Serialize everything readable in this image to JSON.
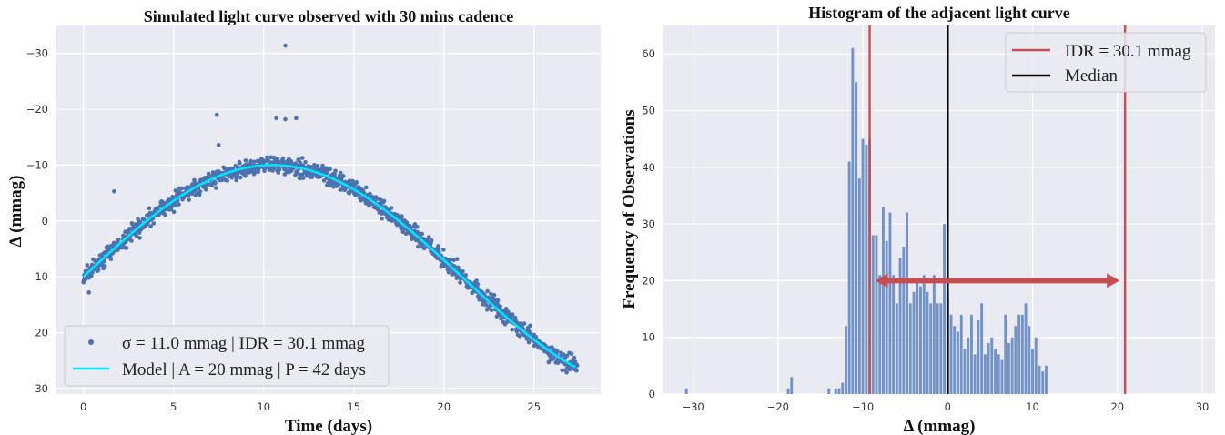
{
  "chart_data": [
    {
      "type": "scatter",
      "title": "Simulated light curve observed with 30 mins cadence",
      "xlabel": "Time (days)",
      "ylabel": "Δ (mmag)",
      "xlim": [
        -1.5,
        28.7
      ],
      "ylim": [
        31.0,
        -35.0
      ],
      "y_inverted": true,
      "xticks": [
        0,
        5,
        10,
        15,
        20,
        25
      ],
      "yticks": [
        -30,
        -20,
        -10,
        0,
        10,
        20,
        30
      ],
      "grid": true,
      "legend_position": "lower-left",
      "model": {
        "amplitude_mmag": 20,
        "period_days": 42,
        "peak_time_days": 10.5,
        "offset_mmag": 10
      },
      "outliers": [
        {
          "x": 1.7,
          "y": -5.3
        },
        {
          "x": 7.4,
          "y": -19.0
        },
        {
          "x": 7.5,
          "y": -13.6
        },
        {
          "x": 10.7,
          "y": -18.4
        },
        {
          "x": 11.2,
          "y": -18.2
        },
        {
          "x": 11.8,
          "y": -18.4
        },
        {
          "x": 11.2,
          "y": -31.4
        },
        {
          "x": 0.3,
          "y": 12.8
        }
      ],
      "series": [
        {
          "name": "σ = 11.0 mmag | IDR = 30.1 mmag",
          "color": "#4c72b0",
          "kind": "points"
        },
        {
          "name": "Model | A = 20 mmag | P = 42 days",
          "color": "#00e5ff",
          "kind": "line"
        }
      ]
    },
    {
      "type": "bar",
      "title": "Histogram of the adjacent light curve",
      "xlabel": "Δ (mmag)",
      "ylabel": "Frequency of Observations",
      "xlim": [
        -33.5,
        31.5
      ],
      "ylim": [
        0,
        65
      ],
      "xticks": [
        -30,
        -20,
        -10,
        0,
        10,
        20,
        30
      ],
      "yticks": [
        0,
        10,
        20,
        30,
        40,
        50,
        60
      ],
      "grid": true,
      "legend_position": "top-right",
      "bar_color": "#7393c6",
      "bin_start": -31,
      "bin_width": 0.4,
      "counts": [
        1,
        0,
        0,
        0,
        0,
        0,
        0,
        0,
        0,
        0,
        0,
        0,
        0,
        0,
        0,
        0,
        0,
        0,
        0,
        0,
        0,
        0,
        0,
        0,
        0,
        0,
        0,
        0,
        0,
        0,
        1,
        3,
        0,
        0,
        0,
        0,
        0,
        0,
        0,
        0,
        0,
        0,
        1,
        0,
        1,
        1,
        2,
        12,
        41,
        61,
        55,
        38,
        45,
        44,
        45,
        28,
        28,
        21,
        33,
        27,
        32,
        21,
        16,
        24,
        26,
        32,
        16,
        18,
        20,
        19,
        21,
        18,
        16,
        21,
        16,
        16,
        30,
        18,
        14,
        12,
        11,
        14,
        8,
        10,
        14,
        7,
        13,
        16,
        7,
        9,
        10,
        8,
        7,
        6,
        14,
        9,
        10,
        12,
        14,
        14,
        16,
        12,
        8,
        10,
        5,
        4,
        5,
        0
      ],
      "idr_low": -9.2,
      "idr_high": 20.9,
      "median": 0.0,
      "idr_arrow_y": 20,
      "series": [
        {
          "name": "IDR = 30.1 mmag",
          "color": "#c44e52",
          "kind": "vline"
        },
        {
          "name": "Median",
          "color": "#000000",
          "kind": "vline"
        }
      ]
    }
  ],
  "colors": {
    "axes_bg": "#eaeaf2",
    "grid": "#ffffff",
    "idr": "#c44e52",
    "median": "#000000"
  }
}
